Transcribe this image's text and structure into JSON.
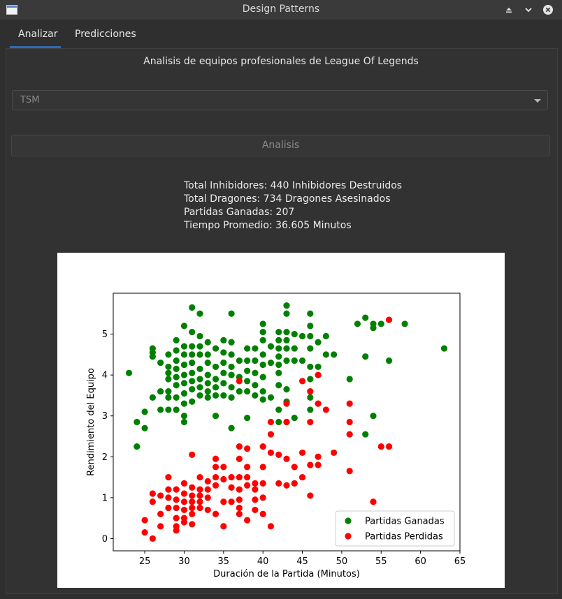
{
  "window": {
    "title": "Design Patterns"
  },
  "tabs": [
    {
      "label": "Analizar"
    },
    {
      "label": "Predicciones"
    }
  ],
  "main": {
    "heading": "Analisis de equipos profesionales de  League Of Legends",
    "team_select": {
      "value": "TSM"
    },
    "analyze_button": "Analisis",
    "stats": [
      "Total Inhibidores: 440 Inhibidores Destruidos",
      "Total Dragones: 734 Dragones Asesinados",
      "Partidas Ganadas: 207",
      "Tiempo Promedio: 36.605 Minutos"
    ]
  },
  "chart_data": {
    "type": "scatter",
    "xlabel": "Duración de la Partida (Minutos)",
    "ylabel": "Rendimiento del Equipo",
    "xlim": [
      21,
      65
    ],
    "ylim": [
      -0.3,
      6
    ],
    "xticks": [
      25,
      30,
      35,
      40,
      45,
      50,
      55,
      60,
      65
    ],
    "yticks": [
      0,
      1,
      2,
      3,
      4,
      5
    ],
    "legend_position": "lower-right",
    "grid": false,
    "series": [
      {
        "name": "Partidas Ganadas",
        "color": "#008000",
        "points": [
          [
            23,
            4.05
          ],
          [
            24,
            2.85
          ],
          [
            24,
            2.25
          ],
          [
            25,
            3.1
          ],
          [
            25,
            2.7
          ],
          [
            26,
            4.65
          ],
          [
            26,
            4.55
          ],
          [
            26,
            4.45
          ],
          [
            26,
            3.45
          ],
          [
            27,
            4.3
          ],
          [
            27,
            3.6
          ],
          [
            27,
            3.15
          ],
          [
            28,
            4.5
          ],
          [
            28,
            4.2
          ],
          [
            28,
            4.05
          ],
          [
            28,
            3.9
          ],
          [
            28,
            3.6
          ],
          [
            28,
            3.45
          ],
          [
            28,
            3.15
          ],
          [
            29,
            4.85
          ],
          [
            29,
            4.6
          ],
          [
            29,
            4.35
          ],
          [
            29,
            4.15
          ],
          [
            29,
            3.95
          ],
          [
            29,
            3.75
          ],
          [
            29,
            3.45
          ],
          [
            29,
            3.15
          ],
          [
            30,
            5.2
          ],
          [
            30,
            4.7
          ],
          [
            30,
            4.5
          ],
          [
            30,
            4.25
          ],
          [
            30,
            4.0
          ],
          [
            30,
            3.8
          ],
          [
            30,
            3.55
          ],
          [
            30,
            3.3
          ],
          [
            30,
            3.0
          ],
          [
            30,
            2.85
          ],
          [
            31,
            5.65
          ],
          [
            31,
            5.05
          ],
          [
            31,
            4.7
          ],
          [
            31,
            4.5
          ],
          [
            31,
            4.3
          ],
          [
            31,
            4.05
          ],
          [
            31,
            3.85
          ],
          [
            31,
            3.65
          ],
          [
            31,
            3.35
          ],
          [
            32,
            5.5
          ],
          [
            32,
            4.95
          ],
          [
            32,
            4.7
          ],
          [
            32,
            4.5
          ],
          [
            32,
            4.15
          ],
          [
            32,
            3.9
          ],
          [
            32,
            3.7
          ],
          [
            32,
            3.5
          ],
          [
            33,
            4.8
          ],
          [
            33,
            4.5
          ],
          [
            33,
            4.3
          ],
          [
            33,
            4.0
          ],
          [
            33,
            3.8
          ],
          [
            33,
            3.6
          ],
          [
            33,
            3.45
          ],
          [
            34,
            4.65
          ],
          [
            34,
            4.2
          ],
          [
            34,
            3.9
          ],
          [
            34,
            3.7
          ],
          [
            34,
            3.5
          ],
          [
            34,
            3.0
          ],
          [
            35,
            4.85
          ],
          [
            35,
            4.55
          ],
          [
            35,
            4.3
          ],
          [
            35,
            4.05
          ],
          [
            35,
            3.8
          ],
          [
            35,
            3.5
          ],
          [
            36,
            5.5
          ],
          [
            36,
            4.8
          ],
          [
            36,
            4.5
          ],
          [
            36,
            4.2
          ],
          [
            36,
            4.0
          ],
          [
            36,
            3.7
          ],
          [
            36,
            3.45
          ],
          [
            36,
            2.7
          ],
          [
            37,
            4.35
          ],
          [
            37,
            3.95
          ],
          [
            37,
            3.6
          ],
          [
            38,
            4.65
          ],
          [
            38,
            4.35
          ],
          [
            38,
            4.1
          ],
          [
            38,
            3.85
          ],
          [
            38,
            3.6
          ],
          [
            38,
            2.95
          ],
          [
            39,
            4.65
          ],
          [
            39,
            4.35
          ],
          [
            39,
            4.05
          ],
          [
            39,
            3.75
          ],
          [
            39,
            3.5
          ],
          [
            40,
            5.25
          ],
          [
            40,
            5.05
          ],
          [
            40,
            4.85
          ],
          [
            40,
            4.5
          ],
          [
            40,
            4.25
          ],
          [
            40,
            3.95
          ],
          [
            40,
            3.6
          ],
          [
            40,
            3.4
          ],
          [
            41,
            4.7
          ],
          [
            41,
            4.3
          ],
          [
            41,
            3.45
          ],
          [
            42,
            5.05
          ],
          [
            42,
            4.85
          ],
          [
            42,
            4.65
          ],
          [
            42,
            4.45
          ],
          [
            42,
            4.25
          ],
          [
            42,
            4.05
          ],
          [
            42,
            3.75
          ],
          [
            42,
            3.15
          ],
          [
            42,
            2.85
          ],
          [
            43,
            5.7
          ],
          [
            43,
            5.5
          ],
          [
            43,
            5.05
          ],
          [
            43,
            4.85
          ],
          [
            43,
            4.65
          ],
          [
            43,
            4.35
          ],
          [
            43,
            3.65
          ],
          [
            43,
            3.35
          ],
          [
            43,
            2.85
          ],
          [
            44,
            5.0
          ],
          [
            44,
            4.65
          ],
          [
            44,
            4.35
          ],
          [
            44,
            2.95
          ],
          [
            45,
            4.95
          ],
          [
            45,
            4.35
          ],
          [
            46,
            5.5
          ],
          [
            46,
            5.2
          ],
          [
            46,
            4.95
          ],
          [
            46,
            4.65
          ],
          [
            46,
            4.2
          ],
          [
            46,
            3.9
          ],
          [
            46,
            3.45
          ],
          [
            46,
            3.15
          ],
          [
            47,
            4.8
          ],
          [
            47,
            4.2
          ],
          [
            48,
            4.95
          ],
          [
            48,
            4.5
          ],
          [
            49,
            4.5
          ],
          [
            51,
            3.9
          ],
          [
            52,
            5.25
          ],
          [
            53,
            5.4
          ],
          [
            53,
            4.45
          ],
          [
            53,
            2.55
          ],
          [
            54,
            5.25
          ],
          [
            54,
            5.15
          ],
          [
            54,
            3.0
          ],
          [
            55,
            5.25
          ],
          [
            56,
            4.35
          ],
          [
            58,
            5.25
          ],
          [
            63,
            4.65
          ]
        ]
      },
      {
        "name": "Partidas Perdidas",
        "color": "#ff0000",
        "points": [
          [
            25,
            0.45
          ],
          [
            25,
            0.15
          ],
          [
            26,
            1.1
          ],
          [
            26,
            0.9
          ],
          [
            26,
            0.0
          ],
          [
            27,
            1.05
          ],
          [
            27,
            0.6
          ],
          [
            27,
            0.3
          ],
          [
            28,
            1.5
          ],
          [
            28,
            1.2
          ],
          [
            28,
            1.0
          ],
          [
            28,
            0.75
          ],
          [
            29,
            1.2
          ],
          [
            29,
            0.95
          ],
          [
            29,
            0.75
          ],
          [
            29,
            0.5
          ],
          [
            29,
            0.3
          ],
          [
            29,
            0.2
          ],
          [
            30,
            1.35
          ],
          [
            30,
            1.1
          ],
          [
            30,
            0.9
          ],
          [
            30,
            0.7
          ],
          [
            30,
            0.5
          ],
          [
            30,
            0.4
          ],
          [
            31,
            2.05
          ],
          [
            31,
            1.25
          ],
          [
            31,
            1.05
          ],
          [
            31,
            0.9
          ],
          [
            31,
            0.75
          ],
          [
            31,
            0.6
          ],
          [
            31,
            0.35
          ],
          [
            32,
            1.5
          ],
          [
            32,
            1.2
          ],
          [
            32,
            1.05
          ],
          [
            32,
            0.9
          ],
          [
            32,
            0.75
          ],
          [
            33,
            1.4
          ],
          [
            33,
            1.2
          ],
          [
            33,
            1.0
          ],
          [
            33,
            0.7
          ],
          [
            34,
            1.95
          ],
          [
            34,
            1.75
          ],
          [
            34,
            1.5
          ],
          [
            34,
            1.3
          ],
          [
            34,
            0.6
          ],
          [
            35,
            1.75
          ],
          [
            35,
            1.45
          ],
          [
            35,
            0.9
          ],
          [
            35,
            0.3
          ],
          [
            36,
            1.5
          ],
          [
            36,
            1.25
          ],
          [
            36,
            0.9
          ],
          [
            37,
            3.85
          ],
          [
            37,
            2.25
          ],
          [
            37,
            1.95
          ],
          [
            37,
            1.5
          ],
          [
            37,
            1.2
          ],
          [
            37,
            0.95
          ],
          [
            37,
            0.75
          ],
          [
            37,
            0.6
          ],
          [
            38,
            2.2
          ],
          [
            38,
            1.75
          ],
          [
            38,
            1.5
          ],
          [
            38,
            1.3
          ],
          [
            38,
            0.45
          ],
          [
            39,
            1.35
          ],
          [
            39,
            1.2
          ],
          [
            39,
            0.95
          ],
          [
            39,
            0.7
          ],
          [
            40,
            2.25
          ],
          [
            40,
            1.75
          ],
          [
            40,
            1.35
          ],
          [
            40,
            1.0
          ],
          [
            40,
            0.6
          ],
          [
            41,
            2.85
          ],
          [
            41,
            2.55
          ],
          [
            41,
            2.1
          ],
          [
            41,
            0.3
          ],
          [
            42,
            2.05
          ],
          [
            42,
            1.35
          ],
          [
            43,
            3.3
          ],
          [
            43,
            2.85
          ],
          [
            43,
            1.95
          ],
          [
            43,
            1.3
          ],
          [
            44,
            1.75
          ],
          [
            44,
            1.35
          ],
          [
            45,
            3.85
          ],
          [
            45,
            2.1
          ],
          [
            45,
            1.5
          ],
          [
            46,
            3.6
          ],
          [
            46,
            2.85
          ],
          [
            46,
            1.8
          ],
          [
            46,
            1.05
          ],
          [
            47,
            4.0
          ],
          [
            47,
            3.3
          ],
          [
            47,
            2.0
          ],
          [
            47,
            1.8
          ],
          [
            48,
            3.15
          ],
          [
            49,
            2.1
          ],
          [
            51,
            3.3
          ],
          [
            51,
            2.85
          ],
          [
            51,
            2.55
          ],
          [
            51,
            1.65
          ],
          [
            54,
            0.9
          ],
          [
            55,
            2.25
          ],
          [
            56,
            5.35
          ],
          [
            56,
            2.25
          ]
        ]
      }
    ]
  }
}
